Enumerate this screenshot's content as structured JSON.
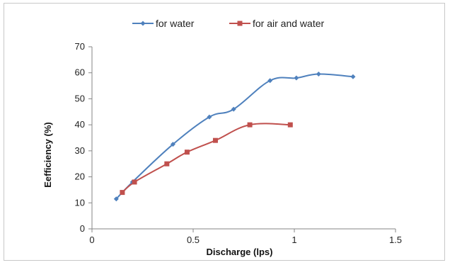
{
  "chart_data": {
    "type": "line",
    "title": "",
    "xlabel": "Discharge (lps)",
    "ylabel": "Eefficiency (%)",
    "xlim": [
      0,
      1.5
    ],
    "ylim": [
      0,
      70
    ],
    "xticks": [
      0,
      0.5,
      1,
      1.5
    ],
    "xtick_labels": [
      "0",
      "0.5",
      "1",
      "1.5"
    ],
    "yticks": [
      0,
      10,
      20,
      30,
      40,
      50,
      60,
      70
    ],
    "ytick_labels": [
      "0",
      "10",
      "20",
      "30",
      "40",
      "50",
      "60",
      "70"
    ],
    "grid": false,
    "legend_position": "top",
    "series": [
      {
        "name": "for water",
        "color": "#4f81bd",
        "marker": "diamond",
        "x": [
          0.12,
          0.2,
          0.4,
          0.58,
          0.7,
          0.88,
          1.01,
          1.12,
          1.29
        ],
        "y": [
          11.5,
          18,
          32.5,
          43,
          46,
          57,
          58,
          59.5,
          58.5
        ]
      },
      {
        "name": "for air and water",
        "color": "#c0504d",
        "marker": "square",
        "x": [
          0.15,
          0.21,
          0.37,
          0.47,
          0.61,
          0.78,
          0.98
        ],
        "y": [
          14,
          18,
          25,
          29.5,
          34,
          40,
          40
        ]
      }
    ]
  }
}
